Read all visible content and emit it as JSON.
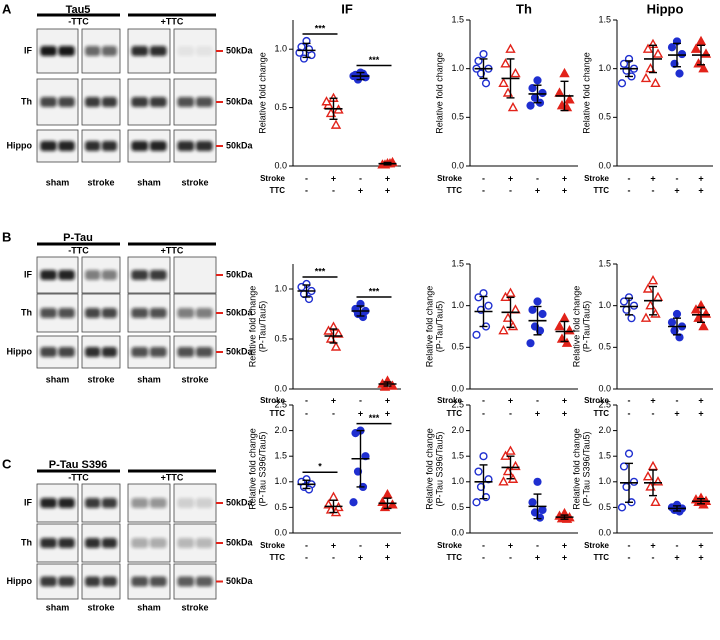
{
  "blots": [
    {
      "panel": "A",
      "title": "Tau5",
      "groups": [
        "-TTC",
        "+TTC"
      ],
      "rows": [
        {
          "label": "IF",
          "marker": "50kDa"
        },
        {
          "label": "Th",
          "marker": "50kDa"
        },
        {
          "label": "Hippo",
          "marker": "50kDa"
        }
      ],
      "lanes": [
        "sham",
        "stroke",
        "sham",
        "stroke"
      ]
    },
    {
      "panel": "B",
      "title": "P-Tau",
      "groups": [
        "-TTC",
        "+TTC"
      ],
      "rows": [
        {
          "label": "IF",
          "marker": "50kDa"
        },
        {
          "label": "Th",
          "marker": "50kDa"
        },
        {
          "label": "Hippo",
          "marker": "50kDa"
        }
      ],
      "lanes": [
        "sham",
        "stroke",
        "sham",
        "stroke"
      ]
    },
    {
      "panel": "C",
      "title": "P-Tau S396",
      "groups": [
        "-TTC",
        "+TTC"
      ],
      "rows": [
        {
          "label": "IF",
          "marker": "50kDa"
        },
        {
          "label": "Th",
          "marker": "50kDa"
        },
        {
          "label": "Hippo",
          "marker": "50kDa"
        }
      ],
      "lanes": [
        "sham",
        "stroke",
        "sham",
        "stroke"
      ]
    }
  ],
  "chart_data": [
    {
      "type": "dot",
      "title": "IF",
      "ylabel": [
        "Relative fold change"
      ],
      "ylim": [
        0,
        1.25
      ],
      "yticks": [
        {
          "value": 0,
          "label": "0.0"
        },
        0.5,
        {
          "value": 1,
          "label": "1.0"
        }
      ],
      "conditions": [
        {
          "name": "Stroke",
          "signs": [
            "-",
            "+",
            "-",
            "+"
          ]
        },
        {
          "name": "TTC",
          "signs": [
            "-",
            "-",
            "+",
            "+"
          ]
        }
      ],
      "series": [
        {
          "color": "#1f2fd0",
          "marker": "open-circle",
          "values": [
            1.07,
            1.02,
            0.95,
            0.92,
            1.0,
            0.97
          ],
          "mean": 0.99,
          "sd": 0.06
        },
        {
          "color": "#e2231a",
          "marker": "open-triangle",
          "values": [
            0.58,
            0.52,
            0.48,
            0.45,
            0.35,
            0.55
          ],
          "mean": 0.49,
          "sd": 0.09
        },
        {
          "color": "#1f2fd0",
          "marker": "filled-circle",
          "values": [
            0.8,
            0.78,
            0.76,
            0.74,
            0.79,
            0.77
          ],
          "mean": 0.77,
          "sd": 0.03
        },
        {
          "color": "#e2231a",
          "marker": "filled-triangle",
          "values": [
            0.02,
            0.01,
            0.03,
            0.01,
            0.02
          ],
          "mean": 0.02,
          "sd": 0.01
        }
      ],
      "significance": [
        {
          "groups": [
            0,
            1
          ],
          "label": "***"
        },
        {
          "groups": [
            2,
            3
          ],
          "label": "***"
        }
      ]
    },
    {
      "type": "dot",
      "title": "Th",
      "ylabel": [
        "Relative fold change"
      ],
      "ylim": [
        0,
        1.5
      ],
      "yticks": [
        {
          "value": 0,
          "label": "0.0"
        },
        0.5,
        {
          "value": 1,
          "label": "1.0"
        },
        1.5
      ],
      "conditions": [
        {
          "name": "Stroke",
          "signs": [
            "-",
            "+",
            "-",
            "+"
          ]
        },
        {
          "name": "TTC",
          "signs": [
            "-",
            "-",
            "+",
            "+"
          ]
        }
      ],
      "series": [
        {
          "color": "#1f2fd0",
          "marker": "open-circle",
          "values": [
            1.15,
            1.08,
            1.0,
            0.95,
            0.85,
            1.0
          ],
          "mean": 1.0,
          "sd": 0.1
        },
        {
          "color": "#e2231a",
          "marker": "open-triangle",
          "values": [
            1.2,
            1.05,
            0.95,
            0.75,
            0.6,
            0.85
          ],
          "mean": 0.9,
          "sd": 0.2
        },
        {
          "color": "#1f2fd0",
          "marker": "filled-circle",
          "values": [
            0.88,
            0.8,
            0.75,
            0.7,
            0.65,
            0.62
          ],
          "mean": 0.74,
          "sd": 0.09
        },
        {
          "color": "#e2231a",
          "marker": "filled-triangle",
          "values": [
            0.95,
            0.75,
            0.68,
            0.62,
            0.6
          ],
          "mean": 0.72,
          "sd": 0.15
        }
      ]
    },
    {
      "type": "dot",
      "title": "Hippo",
      "ylabel": [
        "Relative fold change"
      ],
      "ylim": [
        0,
        1.5
      ],
      "yticks": [
        {
          "value": 0,
          "label": "0.0"
        },
        0.5,
        {
          "value": 1,
          "label": "1.0"
        },
        1.5
      ],
      "conditions": [
        {
          "name": "Stroke",
          "signs": [
            "-",
            "+",
            "-",
            "+"
          ]
        },
        {
          "name": "TTC",
          "signs": [
            "-",
            "-",
            "+",
            "+"
          ]
        }
      ],
      "series": [
        {
          "color": "#1f2fd0",
          "marker": "open-circle",
          "values": [
            1.1,
            1.05,
            1.0,
            0.98,
            0.92,
            0.85
          ],
          "mean": 1.0,
          "sd": 0.08
        },
        {
          "color": "#e2231a",
          "marker": "open-triangle",
          "values": [
            1.25,
            1.2,
            1.15,
            1.0,
            0.85,
            0.9
          ],
          "mean": 1.1,
          "sd": 0.14
        },
        {
          "color": "#1f2fd0",
          "marker": "filled-circle",
          "values": [
            1.28,
            1.22,
            1.15,
            1.05,
            0.95
          ],
          "mean": 1.14,
          "sd": 0.12
        },
        {
          "color": "#e2231a",
          "marker": "filled-triangle",
          "values": [
            1.28,
            1.2,
            1.15,
            1.05,
            1.0
          ],
          "mean": 1.14,
          "sd": 0.1
        }
      ]
    },
    {
      "type": "dot",
      "ylabel": [
        "Relative fold change",
        "(P-Tau/Tau5)"
      ],
      "ylim": [
        0,
        1.25
      ],
      "yticks": [
        {
          "value": 0,
          "label": "0.0"
        },
        0.5,
        {
          "value": 1,
          "label": "1.0"
        }
      ],
      "conditions": [
        {
          "name": "Stroke",
          "signs": [
            "-",
            "+",
            "-",
            "+"
          ]
        },
        {
          "name": "TTC",
          "signs": [
            "-",
            "-",
            "+",
            "+"
          ]
        }
      ],
      "series": [
        {
          "color": "#1f2fd0",
          "marker": "open-circle",
          "values": [
            1.05,
            1.02,
            0.98,
            0.95,
            0.9
          ],
          "mean": 0.98,
          "sd": 0.06
        },
        {
          "color": "#e2231a",
          "marker": "open-triangle",
          "values": [
            0.62,
            0.58,
            0.55,
            0.5,
            0.42
          ],
          "mean": 0.53,
          "sd": 0.07
        },
        {
          "color": "#1f2fd0",
          "marker": "filled-circle",
          "values": [
            0.85,
            0.8,
            0.78,
            0.75,
            0.72
          ],
          "mean": 0.78,
          "sd": 0.05
        },
        {
          "color": "#e2231a",
          "marker": "filled-triangle",
          "values": [
            0.08,
            0.05,
            0.03,
            0.02
          ],
          "mean": 0.05,
          "sd": 0.02
        }
      ],
      "significance": [
        {
          "groups": [
            0,
            1
          ],
          "label": "***"
        },
        {
          "groups": [
            2,
            3
          ],
          "label": "***"
        }
      ]
    },
    {
      "type": "dot",
      "ylabel": [
        "Relative fold change",
        "(P-Tau/Tau5)"
      ],
      "ylim": [
        0,
        1.5
      ],
      "yticks": [
        {
          "value": 0,
          "label": "0.0"
        },
        0.5,
        {
          "value": 1,
          "label": "1.0"
        },
        1.5
      ],
      "conditions": [
        {
          "name": "Stroke",
          "signs": [
            "-",
            "+",
            "-",
            "+"
          ]
        },
        {
          "name": "TTC",
          "signs": [
            "-",
            "-",
            "+",
            "+"
          ]
        }
      ],
      "series": [
        {
          "color": "#1f2fd0",
          "marker": "open-circle",
          "values": [
            1.15,
            1.1,
            1.0,
            0.95,
            0.75,
            0.65
          ],
          "mean": 0.93,
          "sd": 0.18
        },
        {
          "color": "#e2231a",
          "marker": "open-triangle",
          "values": [
            1.15,
            1.1,
            0.95,
            0.85,
            0.75,
            0.7
          ],
          "mean": 0.92,
          "sd": 0.18
        },
        {
          "color": "#1f2fd0",
          "marker": "filled-circle",
          "values": [
            1.05,
            0.95,
            0.9,
            0.75,
            0.7,
            0.55
          ],
          "mean": 0.82,
          "sd": 0.17
        },
        {
          "color": "#e2231a",
          "marker": "filled-triangle",
          "values": [
            0.85,
            0.75,
            0.7,
            0.6,
            0.55
          ],
          "mean": 0.69,
          "sd": 0.12
        }
      ]
    },
    {
      "type": "dot",
      "ylabel": [
        "Relative fold change",
        "(P-Tau/Tau5)"
      ],
      "ylim": [
        0,
        1.5
      ],
      "yticks": [
        {
          "value": 0,
          "label": "0.0"
        },
        0.5,
        {
          "value": 1,
          "label": "1.0"
        },
        1.5
      ],
      "conditions": [
        {
          "name": "Stroke",
          "signs": [
            "-",
            "+",
            "-",
            "+"
          ]
        },
        {
          "name": "TTC",
          "signs": [
            "-",
            "-",
            "+",
            "+"
          ]
        }
      ],
      "series": [
        {
          "color": "#1f2fd0",
          "marker": "open-circle",
          "values": [
            1.1,
            1.05,
            1.0,
            0.95,
            0.85
          ],
          "mean": 0.99,
          "sd": 0.1
        },
        {
          "color": "#e2231a",
          "marker": "open-triangle",
          "values": [
            1.3,
            1.2,
            1.1,
            1.0,
            0.9,
            0.85
          ],
          "mean": 1.06,
          "sd": 0.17
        },
        {
          "color": "#1f2fd0",
          "marker": "filled-circle",
          "values": [
            0.9,
            0.8,
            0.75,
            0.7,
            0.62
          ],
          "mean": 0.75,
          "sd": 0.1
        },
        {
          "color": "#e2231a",
          "marker": "filled-triangle",
          "values": [
            1.0,
            0.95,
            0.9,
            0.85,
            0.75
          ],
          "mean": 0.89,
          "sd": 0.09
        }
      ]
    },
    {
      "type": "dot",
      "ylabel": [
        "Relative fold change",
        "(P-Tau S396/Tau5)"
      ],
      "ylim": [
        0,
        2.5
      ],
      "yticks": [
        {
          "value": 0,
          "label": "0.0"
        },
        0.5,
        {
          "value": 1,
          "label": "1.0"
        },
        1.5,
        {
          "value": 2,
          "label": "2.0"
        },
        2.5
      ],
      "conditions": [
        {
          "name": "Stroke",
          "signs": [
            "-",
            "+",
            "-",
            "+"
          ]
        },
        {
          "name": "TTC",
          "signs": [
            "-",
            "-",
            "+",
            "+"
          ]
        }
      ],
      "series": [
        {
          "color": "#1f2fd0",
          "marker": "open-circle",
          "values": [
            1.05,
            1.0,
            0.95,
            0.9,
            0.85
          ],
          "mean": 0.95,
          "sd": 0.08
        },
        {
          "color": "#e2231a",
          "marker": "open-triangle",
          "values": [
            0.7,
            0.55,
            0.5,
            0.45,
            0.4
          ],
          "mean": 0.52,
          "sd": 0.12
        },
        {
          "color": "#1f2fd0",
          "marker": "filled-circle",
          "values": [
            2.0,
            1.95,
            1.5,
            1.2,
            0.9,
            0.6
          ],
          "mean": 1.45,
          "sd": 0.55
        },
        {
          "color": "#e2231a",
          "marker": "filled-triangle",
          "values": [
            0.75,
            0.6,
            0.55,
            0.5
          ],
          "mean": 0.58,
          "sd": 0.1
        }
      ],
      "significance": [
        {
          "groups": [
            0,
            1
          ],
          "label": "*"
        },
        {
          "groups": [
            2,
            3
          ],
          "label": "***"
        }
      ]
    },
    {
      "type": "dot",
      "ylabel": [
        "Relative fold change",
        "(P-Tau S396/Tau5)"
      ],
      "ylim": [
        0,
        2.5
      ],
      "yticks": [
        {
          "value": 0,
          "label": "0.0"
        },
        0.5,
        {
          "value": 1,
          "label": "1.0"
        },
        1.5,
        {
          "value": 2,
          "label": "2.0"
        },
        2.5
      ],
      "conditions": [
        {
          "name": "Stroke",
          "signs": [
            "-",
            "+",
            "-",
            "+"
          ]
        },
        {
          "name": "TTC",
          "signs": [
            "-",
            "-",
            "+",
            "+"
          ]
        }
      ],
      "series": [
        {
          "color": "#1f2fd0",
          "marker": "open-circle",
          "values": [
            1.5,
            1.2,
            1.05,
            0.9,
            0.7,
            0.6
          ],
          "mean": 1.0,
          "sd": 0.33
        },
        {
          "color": "#e2231a",
          "marker": "open-triangle",
          "values": [
            1.6,
            1.5,
            1.3,
            1.2,
            1.05,
            1.0
          ],
          "mean": 1.28,
          "sd": 0.22
        },
        {
          "color": "#1f2fd0",
          "marker": "filled-circle",
          "values": [
            1.0,
            0.6,
            0.45,
            0.4,
            0.3
          ],
          "mean": 0.52,
          "sd": 0.24
        },
        {
          "color": "#e2231a",
          "marker": "filled-triangle",
          "values": [
            0.38,
            0.33,
            0.3,
            0.28,
            0.27
          ],
          "mean": 0.31,
          "sd": 0.04
        }
      ]
    },
    {
      "type": "dot",
      "ylabel": [
        "Relative fold change",
        "(P-Tau S396/Tau5)"
      ],
      "ylim": [
        0,
        2.5
      ],
      "yticks": [
        {
          "value": 0,
          "label": "0.0"
        },
        0.5,
        {
          "value": 1,
          "label": "1.0"
        },
        1.5,
        {
          "value": 2,
          "label": "2.0"
        },
        2.5
      ],
      "conditions": [
        {
          "name": "Stroke",
          "signs": [
            "-",
            "+",
            "-",
            "+"
          ]
        },
        {
          "name": "TTC",
          "signs": [
            "-",
            "-",
            "+",
            "+"
          ]
        }
      ],
      "series": [
        {
          "color": "#1f2fd0",
          "marker": "open-circle",
          "values": [
            1.55,
            1.3,
            1.0,
            0.9,
            0.6,
            0.5
          ],
          "mean": 0.98,
          "sd": 0.38
        },
        {
          "color": "#e2231a",
          "marker": "open-triangle",
          "values": [
            1.3,
            1.1,
            1.0,
            0.9,
            0.6
          ],
          "mean": 0.98,
          "sd": 0.25
        },
        {
          "color": "#1f2fd0",
          "marker": "filled-circle",
          "values": [
            0.55,
            0.5,
            0.48,
            0.45,
            0.42
          ],
          "mean": 0.48,
          "sd": 0.05
        },
        {
          "color": "#e2231a",
          "marker": "filled-triangle",
          "values": [
            0.68,
            0.65,
            0.62,
            0.6,
            0.55
          ],
          "mean": 0.62,
          "sd": 0.05
        }
      ]
    }
  ]
}
